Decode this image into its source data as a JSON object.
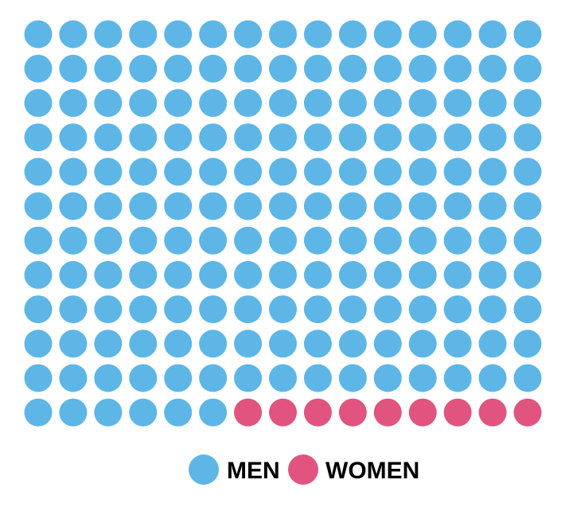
{
  "chart_data": {
    "type": "waffle",
    "rows": 12,
    "columns": 15,
    "series": [
      {
        "name": "MEN",
        "count": 171,
        "color": "#5DB6E6"
      },
      {
        "name": "WOMEN",
        "count": 9,
        "color": "#E0547F"
      }
    ],
    "fill_order": "row-major",
    "legend_position": "bottom-center"
  }
}
